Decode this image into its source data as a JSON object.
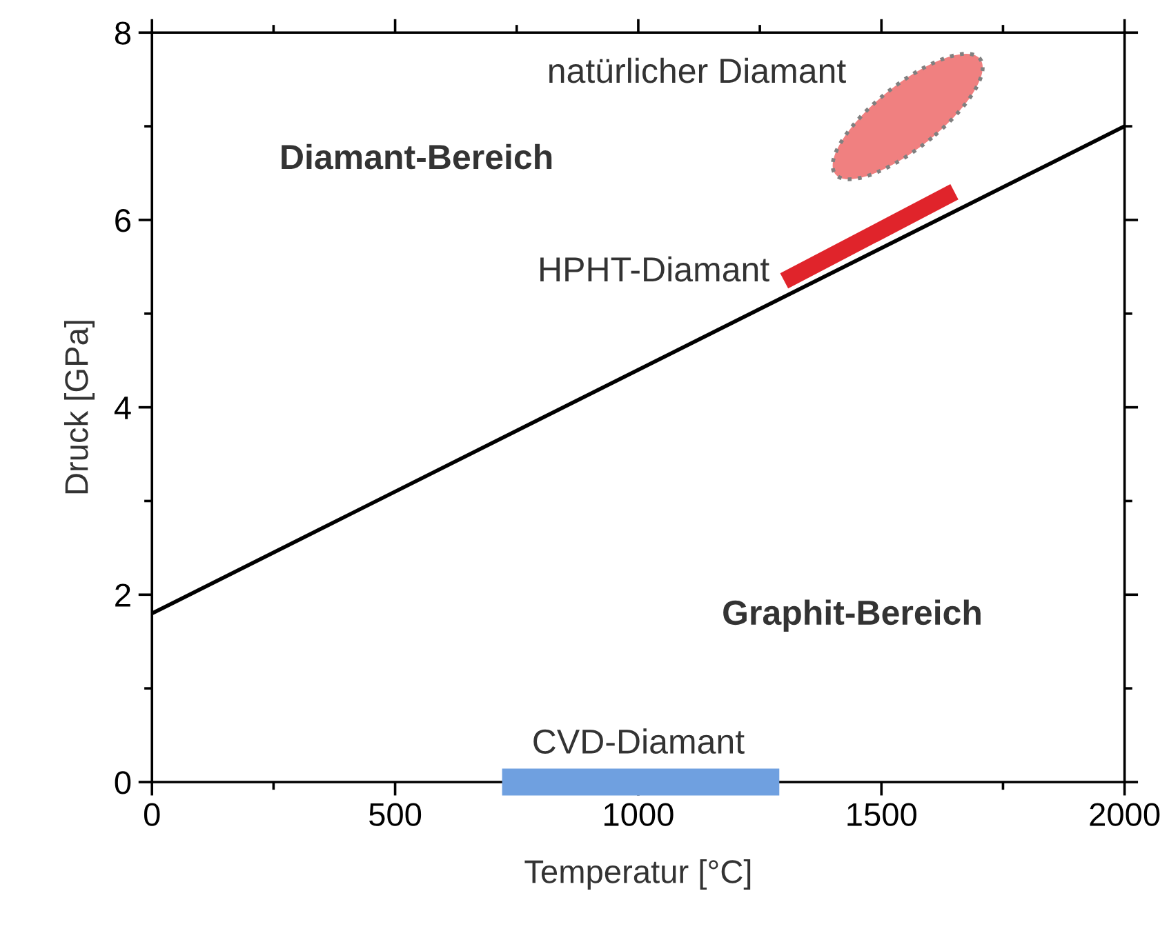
{
  "chart_data": {
    "type": "line",
    "xlabel": "Temperatur [°C]",
    "ylabel": "Druck [GPa]",
    "xlim": [
      0,
      2000
    ],
    "ylim": [
      0,
      8
    ],
    "xticks": [
      0,
      500,
      1000,
      1500,
      2000
    ],
    "yticks": [
      0,
      2,
      4,
      6,
      8
    ],
    "grid": false,
    "legend": false,
    "series": [
      {
        "color": "#000000",
        "x": [
          0,
          2000
        ],
        "values": [
          1.8,
          7.0
        ]
      },
      {
        "color": "#e0242b",
        "x": [
          1300,
          1650
        ],
        "values": [
          5.35,
          6.3
        ]
      },
      {
        "color": "#6fa0e0",
        "x": [
          720,
          1290
        ],
        "values": [
          0,
          0
        ]
      }
    ],
    "annotations": [
      "natürlicher Diamant",
      "HPHT-Diamant",
      "CVD-Diamant",
      "Diamant-Bereich",
      "Graphit-Bereich"
    ]
  }
}
